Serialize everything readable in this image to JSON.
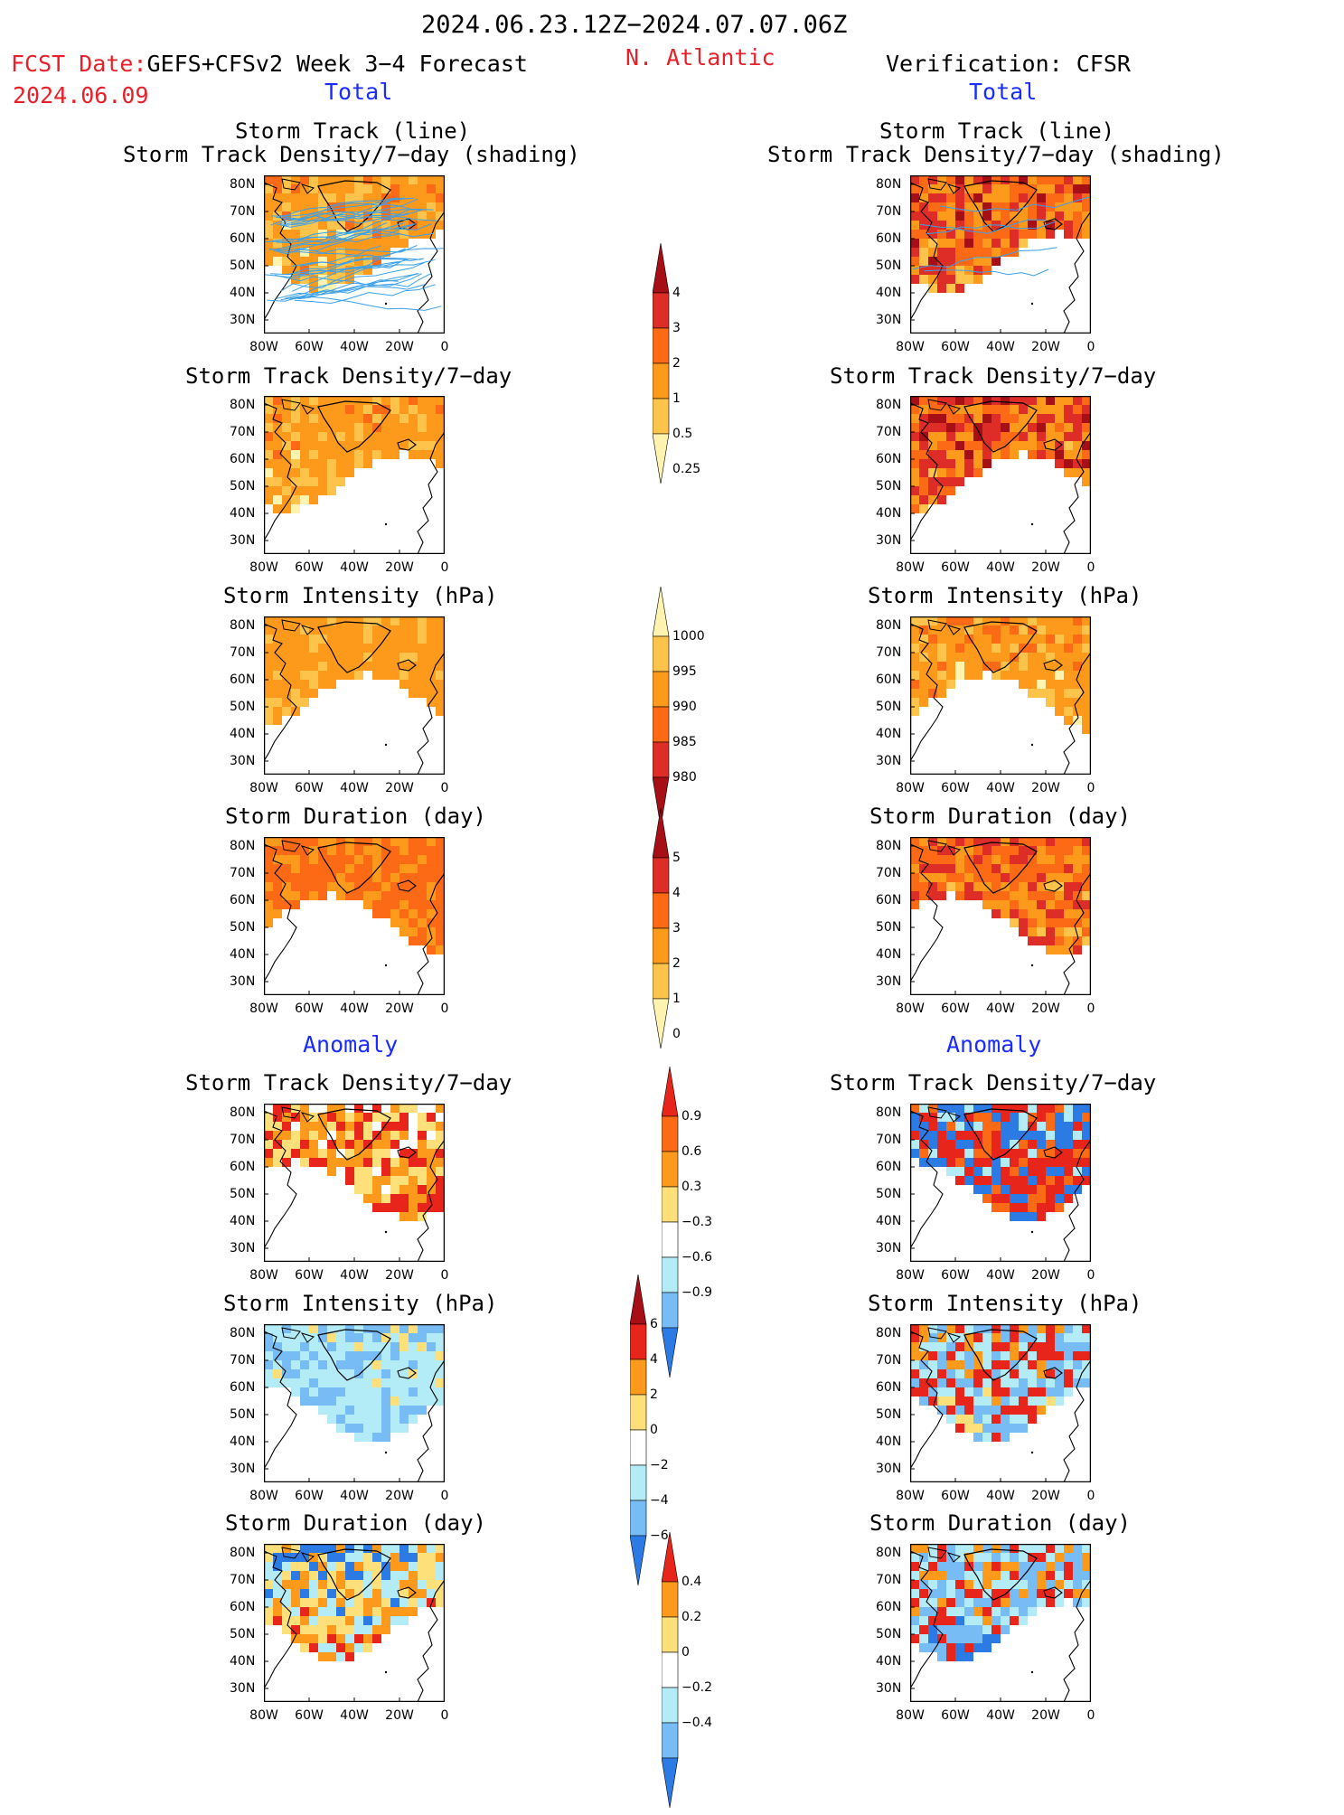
{
  "header": {
    "date_range": "2024.06.23.12Z−2024.07.07.06Z",
    "fcst_label": "FCST Date:",
    "fcst_product": "GEFS+CFSv2 Week 3−4 Forecast",
    "fcst_date": "2024.06.09",
    "region": "N. Atlantic",
    "verification": "Verification: CFSR"
  },
  "sections": {
    "total": "Total",
    "anomaly": "Anomaly"
  },
  "panel_titles": {
    "track_line": "Storm Track (line)",
    "track_shading": "Storm Track Density/7−day (shading)",
    "density": "Storm Track Density/7−day",
    "intensity": "Storm Intensity (hPa)",
    "duration": "Storm Duration (day)"
  },
  "axes": {
    "lat_labels": [
      "80N",
      "70N",
      "60N",
      "50N",
      "40N",
      "30N"
    ],
    "lon_labels": [
      "80W",
      "60W",
      "40W",
      "20W",
      "0"
    ]
  },
  "colorbars": [
    {
      "name": "density-total",
      "labels": [
        "4",
        "3",
        "2",
        "1",
        "0.5",
        "0.25"
      ],
      "colors": [
        "#a50f15",
        "#de2d26",
        "#fc6a16",
        "#fd9a1c",
        "#fdc34a",
        "#fff3b0"
      ]
    },
    {
      "name": "intensity-total",
      "labels": [
        "1000",
        "995",
        "990",
        "985",
        "980"
      ],
      "colors": [
        "#fff3b0",
        "#fdc34a",
        "#fd9a1c",
        "#fc6a16",
        "#de2d26",
        "#a50f15"
      ]
    },
    {
      "name": "duration-total",
      "labels": [
        "5",
        "4",
        "3",
        "2",
        "1",
        "0"
      ],
      "colors": [
        "#a50f15",
        "#de2d26",
        "#fc6a16",
        "#fd9a1c",
        "#fdc34a",
        "#fff3b0"
      ]
    },
    {
      "name": "density-anom",
      "labels": [
        "0.9",
        "0.6",
        "0.3",
        "−0.3",
        "−0.6",
        "−0.9"
      ],
      "colors": [
        "#e8251a",
        "#fc6a16",
        "#fd9a1c",
        "#fde07a",
        "#ffffff",
        "#b3ecf7",
        "#78bcf5",
        "#2c7be5"
      ]
    },
    {
      "name": "intensity-anom",
      "labels": [
        "6",
        "4",
        "2",
        "0",
        "−2",
        "−4",
        "−6"
      ],
      "colors": [
        "#a50f15",
        "#e8251a",
        "#fd9a1c",
        "#fde07a",
        "#ffffff",
        "#b3ecf7",
        "#78bcf5",
        "#2c7be5"
      ]
    },
    {
      "name": "duration-anom",
      "labels": [
        "0.4",
        "0.2",
        "0",
        "−0.2",
        "−0.4"
      ],
      "colors": [
        "#e8251a",
        "#fd9a1c",
        "#fde07a",
        "#ffffff",
        "#b3ecf7",
        "#78bcf5",
        "#2c7be5"
      ]
    }
  ],
  "colors": {
    "title_red": "#e8202a",
    "title_blue": "#1a2cff",
    "track_line": "#3aa0e8"
  }
}
